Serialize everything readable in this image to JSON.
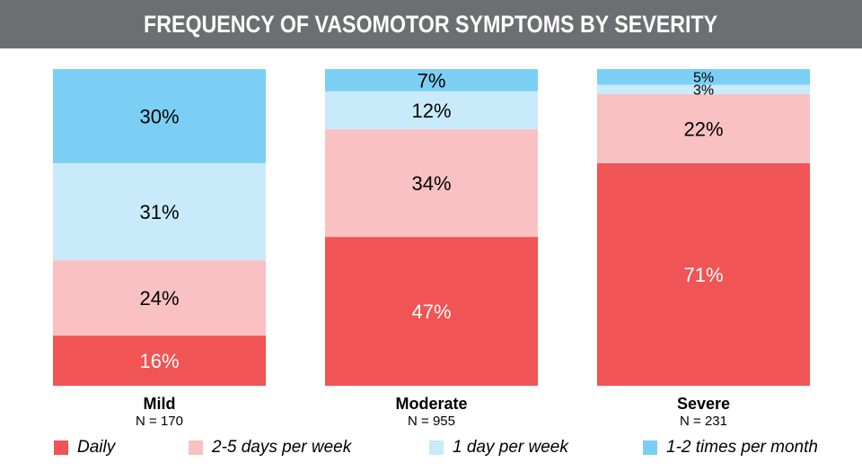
{
  "chart_data": {
    "type": "bar",
    "stacked": true,
    "title": "FREQUENCY OF VASOMOTOR SYMPTOMS BY SEVERITY",
    "categories": [
      "Mild",
      "Moderate",
      "Severe"
    ],
    "category_n": [
      "N = 170",
      "N = 955",
      "N = 231"
    ],
    "ylim": [
      0,
      100
    ],
    "series": [
      {
        "name": "Daily",
        "color": "#f05454",
        "text_color": "#ffffff",
        "values": [
          16,
          47,
          71
        ],
        "labels": [
          "16%",
          "47%",
          "71%"
        ]
      },
      {
        "name": "2-5 days per week",
        "color": "#f9c1c2",
        "text_color": "#000000",
        "values": [
          24,
          34,
          22
        ],
        "labels": [
          "24%",
          "34%",
          "22%"
        ]
      },
      {
        "name": "1 day per week",
        "color": "#c9eafa",
        "text_color": "#000000",
        "values": [
          31,
          12,
          3
        ],
        "labels": [
          "31%",
          "12%",
          "3%"
        ]
      },
      {
        "name": "1-2 times per month",
        "color": "#7ccff4",
        "text_color": "#000000",
        "values": [
          30,
          7,
          5
        ],
        "labels": [
          "30%",
          "7%",
          "5%"
        ]
      }
    ],
    "legend_position": "bottom",
    "grid": false
  }
}
